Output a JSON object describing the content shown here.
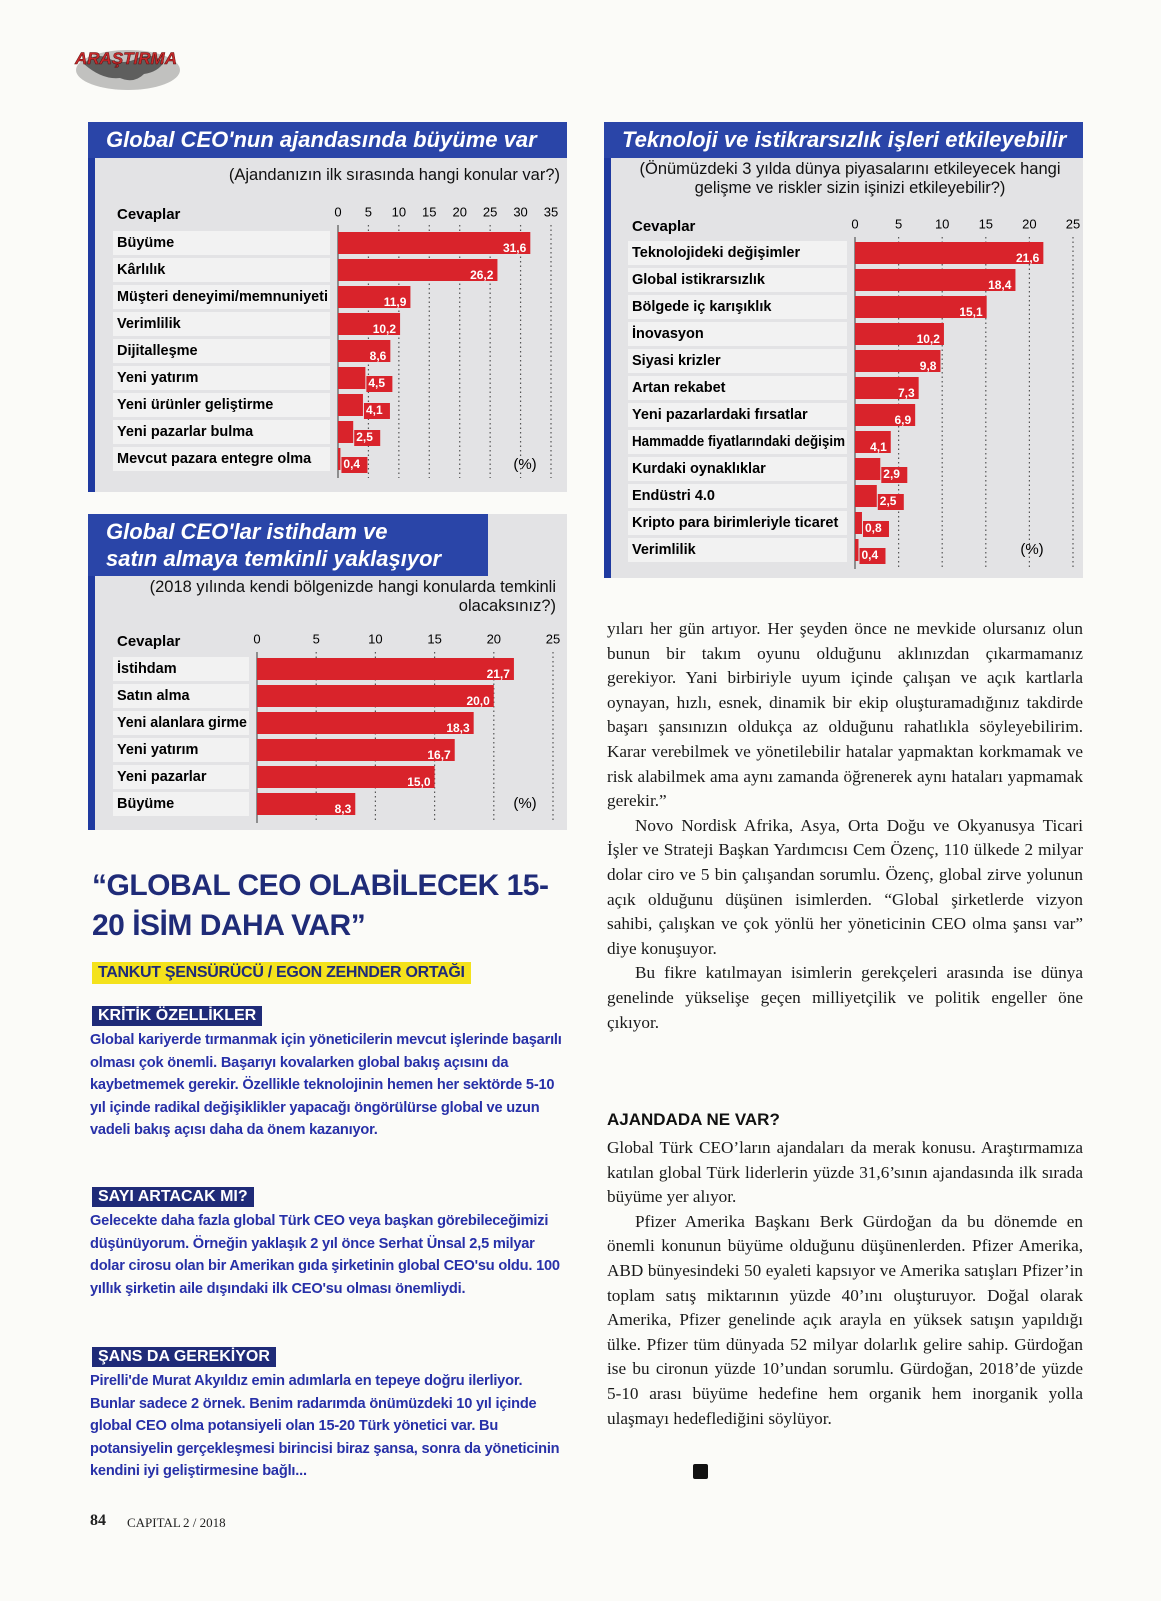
{
  "header": {
    "section": "ARAŞTIRMA"
  },
  "chart_data": [
    {
      "type": "hbar",
      "title": "Global CEO'nun ajandasında büyüme var",
      "subtitle": "(Ajandanızın ilk sırasında hangi konular var?)",
      "category_header": "Cevaplar",
      "unit": "(%)",
      "categories": [
        "Büyüme",
        "Kârlılık",
        "Müşteri deneyimi/memnuniyeti",
        "Verimlilik",
        "Dijitalleşme",
        "Yeni yatırım",
        "Yeni ürünler geliştirme",
        "Yeni pazarlar bulma",
        "Mevcut pazara entegre olma"
      ],
      "values": [
        31.6,
        26.2,
        11.9,
        10.2,
        8.6,
        4.5,
        4.1,
        2.5,
        0.4
      ],
      "value_labels": [
        "31,6",
        "26,2",
        "11,9",
        "10,2",
        "8,6",
        "4,5",
        "4,1",
        "2,5",
        "0,4"
      ],
      "color": "#d9232b",
      "xlim": [
        0,
        35
      ],
      "xticks": [
        0,
        5,
        10,
        15,
        20,
        25,
        30,
        35
      ],
      "grid": true
    },
    {
      "type": "hbar",
      "title": "Global CEO'lar istihdam ve satın almaya temkinli yaklaşıyor",
      "subtitle": "(2018 yılında kendi bölgenizde hangi konularda temkinli olacaksınız?)",
      "category_header": "Cevaplar",
      "unit": "(%)",
      "categories": [
        "İstihdam",
        "Satın alma",
        "Yeni alanlara girme",
        "Yeni yatırım",
        "Yeni pazarlar",
        "Büyüme"
      ],
      "values": [
        21.7,
        20.0,
        18.3,
        16.7,
        15.0,
        8.3
      ],
      "value_labels": [
        "21,7",
        "20,0",
        "18,3",
        "16,7",
        "15,0",
        "8,3"
      ],
      "color": "#d9232b",
      "xlim": [
        0,
        25
      ],
      "xticks": [
        0,
        5,
        10,
        15,
        20,
        25
      ],
      "grid": true
    },
    {
      "type": "hbar",
      "title": "Teknoloji ve istikrarsızlık işleri etkileyebilir",
      "subtitle": "(Önümüzdeki 3 yılda dünya piyasalarını etkileyecek hangi gelişme ve riskler sizin işinizi etkileyebilir?)",
      "category_header": "Cevaplar",
      "unit": "(%)",
      "categories": [
        "Teknolojideki değişimler",
        "Global istikrarsızlık",
        "Bölgede iç karışıklık",
        "İnovasyon",
        "Siyasi krizler",
        "Artan rekabet",
        "Yeni pazarlardaki fırsatlar",
        "Hammadde fiyatlarındaki değişim",
        "Kurdaki oynaklıklar",
        "Endüstri 4.0",
        "Kripto para birimleriyle ticaret",
        "Verimlilik"
      ],
      "values": [
        21.6,
        18.4,
        15.1,
        10.2,
        9.8,
        7.3,
        6.9,
        4.1,
        2.9,
        2.5,
        0.8,
        0.4
      ],
      "value_labels": [
        "21,6",
        "18,4",
        "15,1",
        "10,2",
        "9,8",
        "7,3",
        "6,9",
        "4,1",
        "2,9",
        "2,5",
        "0,8",
        "0,4"
      ],
      "color": "#d9232b",
      "xlim": [
        0,
        25
      ],
      "xticks": [
        0,
        5,
        10,
        15,
        20,
        25
      ],
      "grid": true
    }
  ],
  "interview": {
    "headline": "“GLOBAL CEO OLABİLECEK 15-20 İSİM DAHA VAR”",
    "byline": "TANKUT ŞENSÜRÜCÜ / EGON ZEHNDER ORTAĞI",
    "sections": [
      {
        "title": "KRİTİK ÖZELLİKLER",
        "body": "Global kariyerde tırmanmak için yöneticilerin mevcut işlerinde başarılı olması çok önemli. Başarıyı kovalarken global bakış açısını da kaybetmemek gerekir. Özellikle teknolojinin hemen her sektörde 5-10 yıl içinde radikal değişiklikler yapacağı öngörülürse global ve uzun vadeli bakış açısı daha da önem kazanıyor."
      },
      {
        "title": "SAYI ARTACAK MI?",
        "body": "Gelecekte daha fazla global Türk CEO veya başkan görebileceğimizi düşünüyorum. Örneğin yaklaşık 2 yıl önce Serhat Ünsal 2,5 milyar dolar cirosu olan bir Amerikan gıda şirketinin global CEO'su oldu. 100 yıllık şirketin aile dışındaki ilk CEO'su olması önemliydi."
      },
      {
        "title": "ŞANS DA GEREKİYOR",
        "body": "Pirelli'de Murat Akyıldız emin adımlarla en tepeye doğru ilerliyor. Bunlar sadece 2 örnek. Benim radarımda önümüzdeki 10 yıl içinde global CEO olma potansiyeli olan 15-20 Türk yönetici var. Bu potansiyelin gerçekleşmesi birincisi biraz şansa, sonra da yöneticinin kendini iyi geliştirmesine bağlı..."
      }
    ]
  },
  "article": {
    "paragraphs": [
      "yıları her gün artıyor. Her şeyden önce ne mevkide olursanız olun bunun bir takım oyunu olduğunu aklınızdan çıkarmamanız gerekiyor. Yani birbiriyle uyum içinde çalışan ve açık kartlarla oynayan, hızlı, esnek, dinamik bir ekip oluşturamadığınız takdirde başarı şansınızın oldukça az olduğunu rahatlıkla söyleyebilirim. Karar verebilmek ve yönetilebilir hatalar yapmaktan korkmamak ve risk alabilmek ama aynı zamanda öğrenerek aynı hataları yapmamak gerekir.”",
      "Novo Nordisk Afrika, Asya, Orta Doğu ve Okyanusya Ticari İşler ve Strateji Başkan Yardımcısı Cem Özenç, 110 ülkede 2 milyar dolar ciro ve 5 bin çalışandan sorumlu. Özenç, global zirve yolunun açık olduğunu düşünen isimlerden. “Global şirketlerde vizyon sahibi, çalışkan ve çok yönlü her yöneticinin CEO olma şansı var” diye konuşuyor.",
      "Bu fikre katılmayan isimlerin gerekçeleri arasında ise dünya genelinde yükselişe geçen milliyetçilik ve politik engeller öne çıkıyor."
    ],
    "subheading": "AJANDADA NE VAR?",
    "paragraphs2": [
      "Global Türk CEO’ların ajandaları da merak konusu. Araştırmamıza katılan global Türk liderlerin yüzde 31,6’sının ajandasında ilk sırada büyüme yer alıyor.",
      "Pfizer Amerika Başkanı Berk Gürdoğan da bu dönemde en önemli konunun büyüme olduğunu düşünenlerden. Pfizer Amerika, ABD bünyesindeki 50 eyaleti kapsıyor ve Amerika satışları Pfizer’in toplam satış miktarının yüzde 40’ını oluşturuyor. Doğal olarak Amerika, Pfizer genelinde açık arayla en yüksek satışın yapıldığı ülke. Pfizer tüm dünyada 52 milyar dolarlık gelire sahip. Gürdoğan ise bu cironun yüzde 10’undan sorumlu. Gürdoğan, 2018’de yüzde 5-10 arası büyüme hedefine hem organik hem inorganik yolla ulaşmayı hedeflediğini söylüyor."
    ]
  },
  "footer": {
    "page": "84",
    "magazine": "CAPITAL",
    "issue": "2 / 2018"
  }
}
